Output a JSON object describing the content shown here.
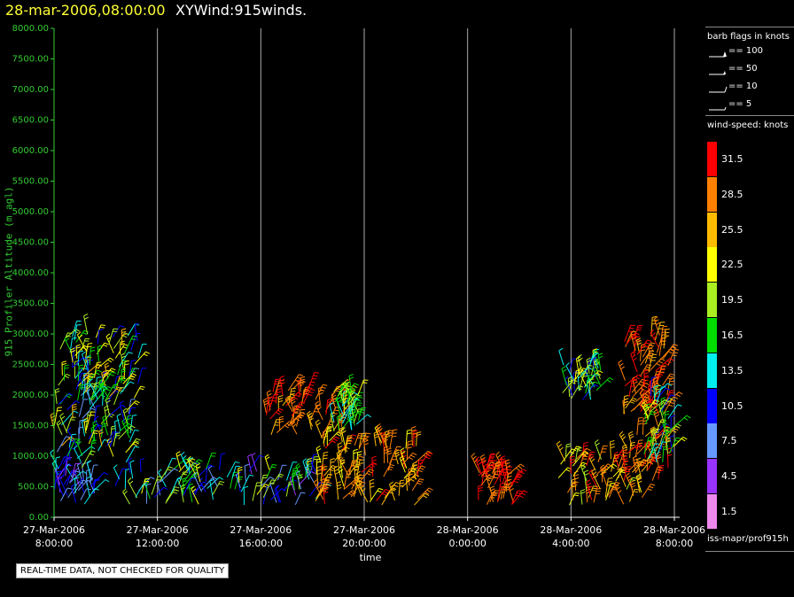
{
  "header": {
    "date": "28-mar-2006,08:00:00",
    "title": "XYWind:915winds."
  },
  "notice": "REAL-TIME DATA, NOT CHECKED FOR QUALITY",
  "source": "iss-mapr/prof915h",
  "barb_legend": {
    "title": "barb flags in knots",
    "items": [
      "== 100",
      "== 50",
      "== 10",
      "== 5"
    ]
  },
  "speed_legend": {
    "title": "wind-speed: knots",
    "bins": [
      {
        "label": "31.5",
        "color": "#ff0000"
      },
      {
        "label": "28.5",
        "color": "#ff8000"
      },
      {
        "label": "25.5",
        "color": "#ffbb00"
      },
      {
        "label": "22.5",
        "color": "#ffff00"
      },
      {
        "label": "19.5",
        "color": "#aaee22"
      },
      {
        "label": "16.5",
        "color": "#00dd00"
      },
      {
        "label": "13.5",
        "color": "#00eeee"
      },
      {
        "label": "10.5",
        "color": "#0000ff"
      },
      {
        "label": "7.5",
        "color": "#6699ff"
      },
      {
        "label": "4.5",
        "color": "#9933ff"
      },
      {
        "label": "1.5",
        "color": "#ee88ee"
      }
    ]
  },
  "chart_data": {
    "type": "scatter",
    "ylabel": "915 Profiler Altitude (m agl)",
    "xlabel": "time",
    "ylim": [
      0,
      8000
    ],
    "y_ticks": [
      "0.00",
      "500.00",
      "1000.00",
      "1500.00",
      "2000.00",
      "2500.00",
      "3000.00",
      "3500.00",
      "4000.00",
      "4500.00",
      "5000.00",
      "5500.00",
      "6000.00",
      "6500.00",
      "7000.00",
      "7500.00",
      "8000.00"
    ],
    "x_ticks": [
      {
        "date": "27-Mar-2006",
        "time": "8:00:00"
      },
      {
        "date": "27-Mar-2006",
        "time": "12:00:00"
      },
      {
        "date": "27-Mar-2006",
        "time": "16:00:00"
      },
      {
        "date": "27-Mar-2006",
        "time": "20:00:00"
      },
      {
        "date": "28-Mar-2006",
        "time": "0:00:00"
      },
      {
        "date": "28-Mar-2006",
        "time": "4:00:00"
      },
      {
        "date": "28-Mar-2006",
        "time": "8:00:00"
      }
    ],
    "x_unit": "hours after 27-Mar-2006 8:00:00",
    "xlim": [
      0,
      24
    ],
    "grid": "vertical at each time tick",
    "clusters": [
      {
        "t": [
          0,
          1.6
        ],
        "alt": [
          200,
          800
        ],
        "speed": [
          4.5,
          13.5
        ]
      },
      {
        "t": [
          0,
          3
        ],
        "alt": [
          800,
          2200
        ],
        "speed": [
          7.5,
          25.5
        ]
      },
      {
        "t": [
          0.2,
          3.3
        ],
        "alt": [
          1900,
          3000
        ],
        "speed": [
          10.5,
          25.5
        ]
      },
      {
        "t": [
          2.2,
          5.5
        ],
        "alt": [
          200,
          800
        ],
        "speed": [
          7.5,
          22.5
        ]
      },
      {
        "t": [
          5.5,
          10.2
        ],
        "alt": [
          200,
          800
        ],
        "speed": [
          4.5,
          22.5
        ]
      },
      {
        "t": [
          8.2,
          11.2
        ],
        "alt": [
          1300,
          2100
        ],
        "speed": [
          25.5,
          31.5
        ]
      },
      {
        "t": [
          10.8,
          11.8
        ],
        "alt": [
          1400,
          2100
        ],
        "speed": [
          13.5,
          22.5
        ]
      },
      {
        "t": [
          10,
          14.2
        ],
        "alt": [
          200,
          1300
        ],
        "speed": [
          22.5,
          31.5
        ]
      },
      {
        "t": [
          16.4,
          17.8
        ],
        "alt": [
          200,
          800
        ],
        "speed": [
          28.5,
          31.5
        ]
      },
      {
        "t": [
          19.5,
          22.8
        ],
        "alt": [
          200,
          1000
        ],
        "speed": [
          19.5,
          31.5
        ]
      },
      {
        "t": [
          19.6,
          21.2
        ],
        "alt": [
          1900,
          2500
        ],
        "speed": [
          10.5,
          22.5
        ]
      },
      {
        "t": [
          22,
          23.8
        ],
        "alt": [
          600,
          3000
        ],
        "speed": [
          25.5,
          31.5
        ]
      },
      {
        "t": [
          22.8,
          24
        ],
        "alt": [
          900,
          2000
        ],
        "speed": [
          10.5,
          22.5
        ]
      }
    ]
  }
}
